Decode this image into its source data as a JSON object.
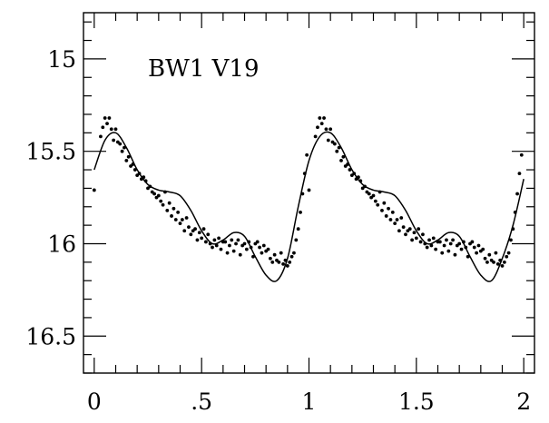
{
  "chart_data": {
    "type": "scatter",
    "title": "",
    "annotation": "BW1 V19",
    "xlabel": "",
    "ylabel": "",
    "xlim": [
      -0.05,
      2.05
    ],
    "ylim": [
      16.7,
      14.75
    ],
    "y_inverted": true,
    "x_ticks": [
      0,
      0.5,
      1,
      1.5,
      2
    ],
    "x_tick_labels": [
      "0",
      ".5",
      "1",
      "1.5",
      "2"
    ],
    "x_minor_step": 0.1,
    "y_ticks": [
      15,
      15.5,
      16,
      16.5
    ],
    "y_tick_labels": [
      "15",
      "15.5",
      "16",
      "16.5"
    ],
    "y_minor_step": 0.1,
    "grid": false,
    "series": [
      {
        "kind": "points",
        "x": [
          0.0,
          0.03,
          0.04,
          0.05,
          0.06,
          0.07,
          0.08,
          0.09,
          0.1,
          0.11,
          0.12,
          0.13,
          0.14,
          0.15,
          0.16,
          0.17,
          0.18,
          0.19,
          0.2,
          0.21,
          0.22,
          0.23,
          0.24,
          0.25,
          0.26,
          0.27,
          0.28,
          0.29,
          0.3,
          0.31,
          0.32,
          0.33,
          0.34,
          0.35,
          0.36,
          0.37,
          0.38,
          0.39,
          0.4,
          0.41,
          0.42,
          0.43,
          0.44,
          0.45,
          0.46,
          0.47,
          0.48,
          0.49,
          0.5,
          0.51,
          0.52,
          0.53,
          0.54,
          0.55,
          0.56,
          0.57,
          0.58,
          0.59,
          0.6,
          0.61,
          0.62,
          0.63,
          0.64,
          0.65,
          0.66,
          0.67,
          0.68,
          0.69,
          0.7,
          0.71,
          0.72,
          0.73,
          0.74,
          0.75,
          0.76,
          0.77,
          0.78,
          0.79,
          0.8,
          0.81,
          0.82,
          0.83,
          0.84,
          0.85,
          0.86,
          0.87,
          0.88,
          0.89,
          0.9,
          0.91,
          0.92,
          0.93,
          0.94,
          0.95,
          0.96,
          0.97,
          0.98,
          0.99
        ],
        "y": [
          15.71,
          15.42,
          15.37,
          15.32,
          15.35,
          15.32,
          15.38,
          15.44,
          15.38,
          15.45,
          15.46,
          15.5,
          15.48,
          15.55,
          15.53,
          15.58,
          15.57,
          15.6,
          15.63,
          15.62,
          15.65,
          15.64,
          15.66,
          15.7,
          15.69,
          15.72,
          15.73,
          15.75,
          15.74,
          15.77,
          15.79,
          15.72,
          15.82,
          15.78,
          15.85,
          15.81,
          15.87,
          15.83,
          15.89,
          15.87,
          15.93,
          15.86,
          15.91,
          15.95,
          15.93,
          15.92,
          15.98,
          15.94,
          15.97,
          15.92,
          15.99,
          15.95,
          16.0,
          16.02,
          15.98,
          16.01,
          15.97,
          16.03,
          15.99,
          15.99,
          16.05,
          16.01,
          15.98,
          16.04,
          16.0,
          15.98,
          16.06,
          16.01,
          16.0,
          16.03,
          15.99,
          16.02,
          16.07,
          16.0,
          15.99,
          16.02,
          16.05,
          16.01,
          16.04,
          16.03,
          16.08,
          16.1,
          16.06,
          16.09,
          16.1,
          16.05,
          16.11,
          16.09,
          16.12,
          16.1,
          16.07,
          16.05,
          15.98,
          15.92,
          15.83,
          15.73,
          15.62,
          15.52
        ]
      },
      {
        "kind": "points",
        "x": [
          1.0,
          1.03,
          1.04,
          1.05,
          1.06,
          1.07,
          1.08,
          1.09,
          1.1,
          1.11,
          1.12,
          1.13,
          1.14,
          1.15,
          1.16,
          1.17,
          1.18,
          1.19,
          1.2,
          1.21,
          1.22,
          1.23,
          1.24,
          1.25,
          1.26,
          1.27,
          1.28,
          1.29,
          1.3,
          1.31,
          1.32,
          1.33,
          1.34,
          1.35,
          1.36,
          1.37,
          1.38,
          1.39,
          1.4,
          1.41,
          1.42,
          1.43,
          1.44,
          1.45,
          1.46,
          1.47,
          1.48,
          1.49,
          1.5,
          1.51,
          1.52,
          1.53,
          1.54,
          1.55,
          1.56,
          1.57,
          1.58,
          1.59,
          1.6,
          1.61,
          1.62,
          1.63,
          1.64,
          1.65,
          1.66,
          1.67,
          1.68,
          1.69,
          1.7,
          1.71,
          1.72,
          1.73,
          1.74,
          1.75,
          1.76,
          1.77,
          1.78,
          1.79,
          1.8,
          1.81,
          1.82,
          1.83,
          1.84,
          1.85,
          1.86,
          1.87,
          1.88,
          1.89,
          1.9,
          1.91,
          1.92,
          1.93,
          1.94,
          1.95,
          1.96,
          1.97,
          1.98,
          1.99
        ],
        "y": [
          15.71,
          15.42,
          15.37,
          15.32,
          15.35,
          15.32,
          15.38,
          15.44,
          15.38,
          15.45,
          15.46,
          15.5,
          15.48,
          15.55,
          15.53,
          15.58,
          15.57,
          15.6,
          15.63,
          15.62,
          15.65,
          15.64,
          15.66,
          15.7,
          15.69,
          15.72,
          15.73,
          15.75,
          15.74,
          15.77,
          15.79,
          15.72,
          15.82,
          15.78,
          15.85,
          15.81,
          15.87,
          15.83,
          15.89,
          15.87,
          15.93,
          15.86,
          15.91,
          15.95,
          15.93,
          15.92,
          15.98,
          15.94,
          15.97,
          15.92,
          15.99,
          15.95,
          16.0,
          16.02,
          15.98,
          16.01,
          15.97,
          16.03,
          15.99,
          15.99,
          16.05,
          16.01,
          15.98,
          16.04,
          16.0,
          15.98,
          16.06,
          16.01,
          16.0,
          16.03,
          15.99,
          16.02,
          16.07,
          16.0,
          15.99,
          16.02,
          16.05,
          16.01,
          16.04,
          16.03,
          16.08,
          16.1,
          16.06,
          16.09,
          16.1,
          16.05,
          16.11,
          16.09,
          16.12,
          16.1,
          16.07,
          16.05,
          15.98,
          15.92,
          15.83,
          15.73,
          15.62,
          15.52
        ]
      },
      {
        "kind": "curve",
        "x": [
          0.0,
          0.05,
          0.1,
          0.15,
          0.2,
          0.25,
          0.3,
          0.35,
          0.4,
          0.45,
          0.5,
          0.55,
          0.6,
          0.65,
          0.7,
          0.75,
          0.8,
          0.85,
          0.9,
          0.95,
          1.0,
          1.05,
          1.1,
          1.15,
          1.2,
          1.25,
          1.3,
          1.35,
          1.4,
          1.45,
          1.5,
          1.55,
          1.6,
          1.65,
          1.7,
          1.75,
          1.8,
          1.85,
          1.9,
          1.95,
          2.0
        ],
        "y": [
          15.6,
          15.44,
          15.4,
          15.48,
          15.6,
          15.68,
          15.71,
          15.72,
          15.74,
          15.82,
          15.93,
          16.0,
          15.98,
          15.94,
          15.96,
          16.07,
          16.17,
          16.2,
          16.08,
          15.8,
          15.55,
          15.42,
          15.4,
          15.48,
          15.6,
          15.68,
          15.71,
          15.72,
          15.74,
          15.82,
          15.93,
          16.0,
          15.98,
          15.94,
          15.96,
          16.07,
          16.17,
          16.2,
          16.08,
          15.9,
          15.65
        ]
      }
    ]
  }
}
